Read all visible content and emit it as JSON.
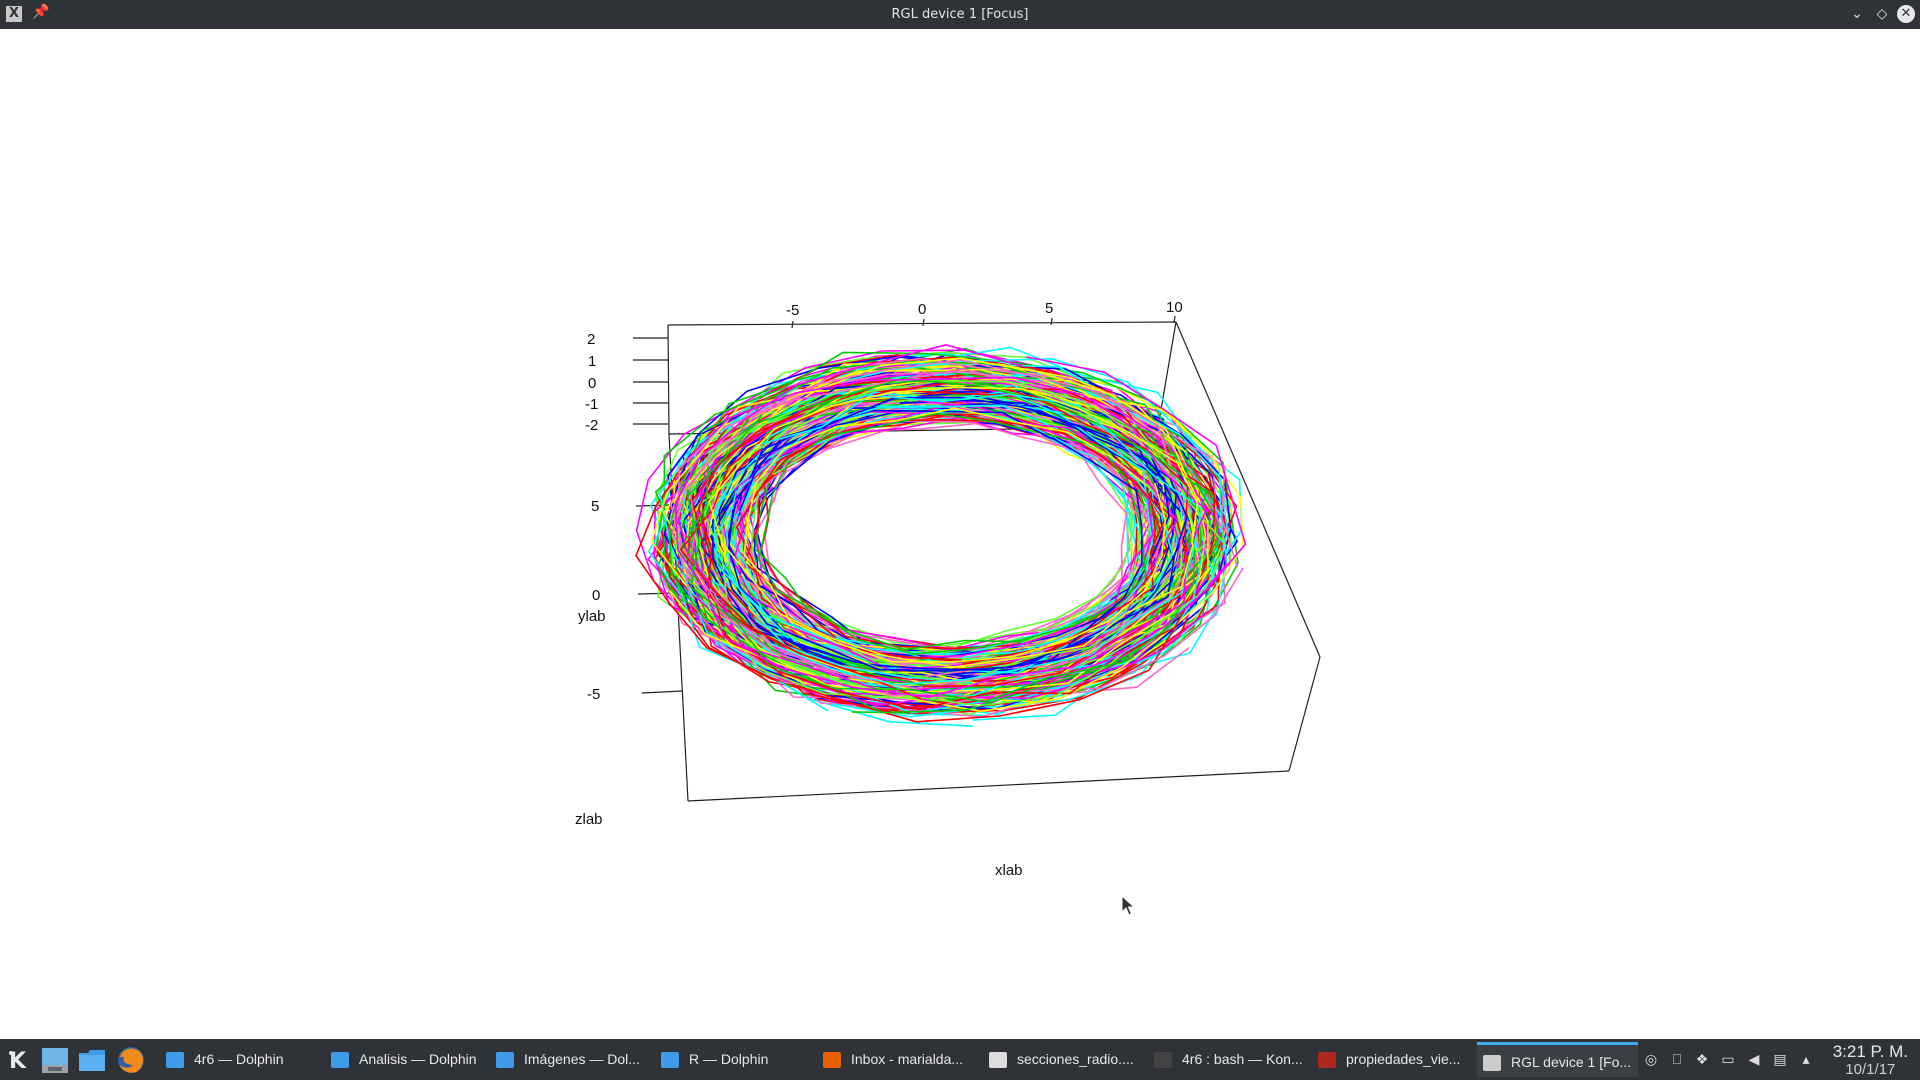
{
  "window": {
    "title": "RGL device 1 [Focus]",
    "app_icon": "x11-icon",
    "pin_icon": "pin-icon",
    "buttons": [
      "minimize-icon",
      "maximize-icon",
      "close-icon"
    ]
  },
  "plot": {
    "x_ticks": [
      "-5",
      "0",
      "5",
      "10"
    ],
    "z_ticks": [
      "2",
      "1",
      "0",
      "-1",
      "-2"
    ],
    "y_ticks": [
      "5",
      "0",
      "-5"
    ],
    "xlab": "xlab",
    "ylab": "ylab",
    "zlab": "zlab"
  },
  "chart_data": {
    "type": "line",
    "description_kind": "3d-line-plot",
    "xlabel": "xlab",
    "ylabel": "ylab",
    "zlabel": "zlab",
    "x_ticks": [
      -5,
      0,
      5,
      10
    ],
    "y_ticks": [
      -5,
      0,
      5
    ],
    "z_ticks": [
      -2,
      -1,
      0,
      1,
      2
    ],
    "series_colors": [
      "#ff0000",
      "#00cc00",
      "#0000ff",
      "#00ffff",
      "#ff00ff",
      "#ffff00",
      "#66ff33",
      "#ff66cc"
    ]
  },
  "taskbar": {
    "launchers": [
      {
        "icon": "kde-icon"
      },
      {
        "icon": "desktop-icon"
      },
      {
        "icon": "file-manager-icon"
      },
      {
        "icon": "firefox-icon"
      }
    ],
    "tasks": [
      {
        "label": "4r6 — Dolphin",
        "icon": "folder-icon",
        "color": "#3d9be9"
      },
      {
        "label": "Analisis — Dolphin",
        "icon": "folder-icon",
        "color": "#3d9be9"
      },
      {
        "label": "Imágenes — Dol...",
        "icon": "folder-icon",
        "color": "#3d9be9"
      },
      {
        "label": "R — Dolphin",
        "icon": "folder-icon",
        "color": "#3d9be9"
      },
      {
        "label": "Inbox - marialda...",
        "icon": "firefox-icon",
        "color": "#e66000"
      },
      {
        "label": "secciones_radio....",
        "icon": "document-icon",
        "color": "#dddddd"
      },
      {
        "label": "4r6 : bash — Kon...",
        "icon": "terminal-icon",
        "color": "#444444"
      },
      {
        "label": "propiedades_vie...",
        "icon": "pdf-icon",
        "color": "#b0271d"
      },
      {
        "label": "RGL device 1 [Fo...",
        "icon": "x11-icon",
        "color": "#cccccc",
        "active": true
      }
    ],
    "tray_icons": [
      "network-icon",
      "usb-icon",
      "dropbox-icon",
      "display-icon",
      "volume-icon",
      "clipboard-icon",
      "arrow-up-icon"
    ],
    "clock": {
      "time": "3:21 P. M.",
      "date": "10/1/17"
    }
  }
}
